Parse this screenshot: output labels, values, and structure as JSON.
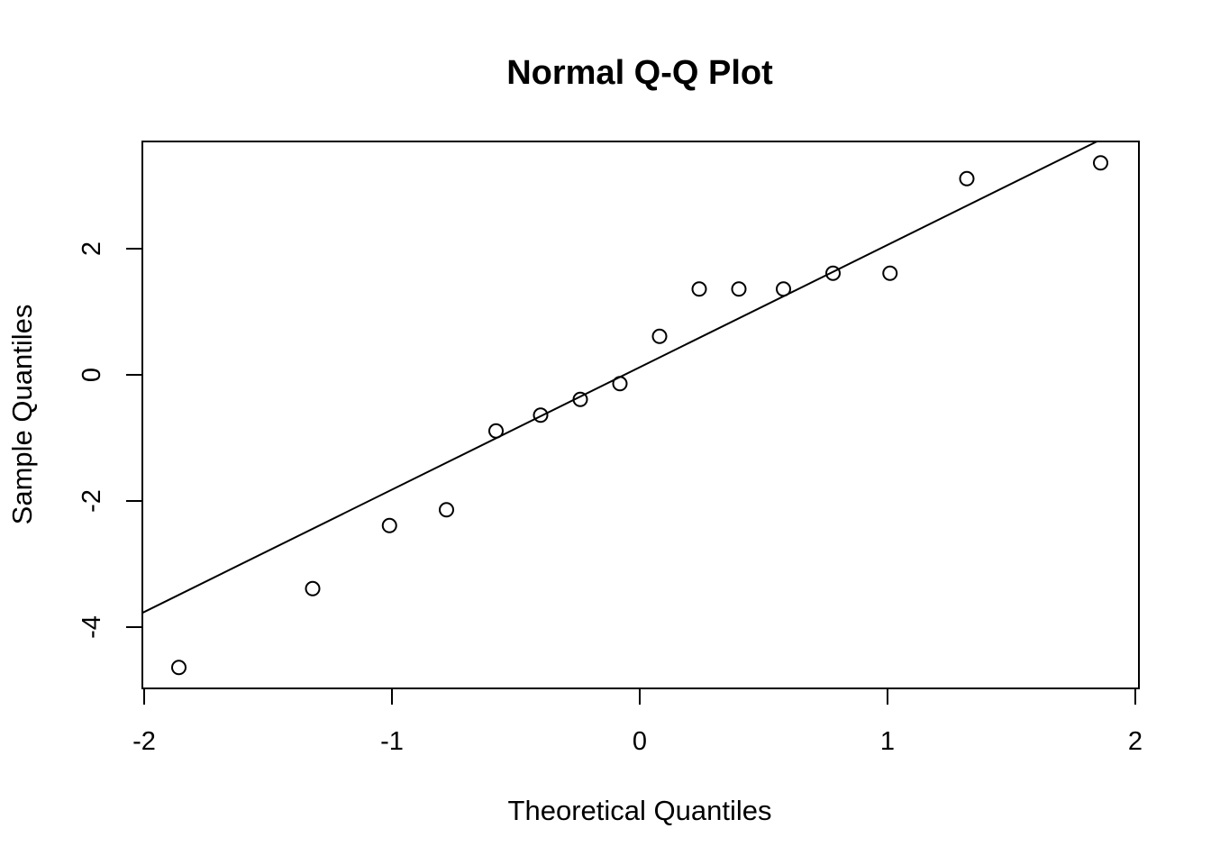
{
  "chart_data": {
    "type": "scatter",
    "title": "Normal Q-Q Plot",
    "xlabel": "Theoretical Quantiles",
    "ylabel": "Sample Quantiles",
    "xlim": [
      -2.0,
      2.0
    ],
    "ylim": [
      -4.95,
      3.7
    ],
    "xticks": [
      {
        "value": -2,
        "label": "-2"
      },
      {
        "value": -1,
        "label": "-1"
      },
      {
        "value": 0,
        "label": "0"
      },
      {
        "value": 1,
        "label": "1"
      },
      {
        "value": 2,
        "label": "2"
      }
    ],
    "yticks": [
      {
        "value": -4,
        "label": "-4"
      },
      {
        "value": -2,
        "label": "-2"
      },
      {
        "value": 0,
        "label": "0"
      },
      {
        "value": 2,
        "label": "2"
      }
    ],
    "points": [
      {
        "x": -1.86,
        "y": -4.64
      },
      {
        "x": -1.32,
        "y": -3.39
      },
      {
        "x": -1.01,
        "y": -2.39
      },
      {
        "x": -0.78,
        "y": -2.14
      },
      {
        "x": -0.58,
        "y": -0.89
      },
      {
        "x": -0.4,
        "y": -0.64
      },
      {
        "x": -0.24,
        "y": -0.39
      },
      {
        "x": -0.08,
        "y": -0.14
      },
      {
        "x": 0.08,
        "y": 0.61
      },
      {
        "x": 0.24,
        "y": 1.36
      },
      {
        "x": 0.4,
        "y": 1.36
      },
      {
        "x": 0.58,
        "y": 1.36
      },
      {
        "x": 0.78,
        "y": 1.61
      },
      {
        "x": 1.01,
        "y": 1.61
      },
      {
        "x": 1.32,
        "y": 3.11
      },
      {
        "x": 1.86,
        "y": 3.36
      }
    ],
    "reference_line": {
      "intercept": 0.12,
      "slope": 1.94
    },
    "grid": false,
    "legend": "none"
  }
}
